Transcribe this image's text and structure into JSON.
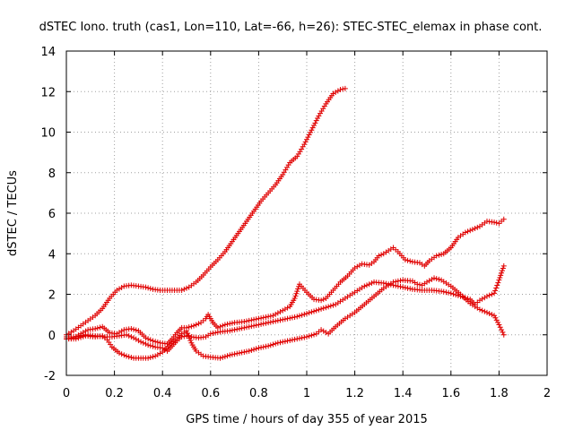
{
  "chart_data": {
    "type": "scatter",
    "title": "dSTEC Iono. truth (cas1, Lon=110, Lat=-66, h=26): STEC-STEC_elemax in phase cont.",
    "xlabel": "GPS time / hours of day 355 of year 2015",
    "ylabel": "dSTEC  / TECUs",
    "xlim": [
      0,
      2
    ],
    "ylim": [
      -2,
      14
    ],
    "xticks": [
      "0",
      "0.2",
      "0.4",
      "0.6",
      "0.8",
      "1",
      "1.2",
      "1.4",
      "1.6",
      "1.8",
      "2"
    ],
    "yticks": [
      "-2",
      "0",
      "2",
      "4",
      "6",
      "8",
      "10",
      "12",
      "14"
    ],
    "grid": true,
    "marker": "plus",
    "color": "#e00000",
    "series": [
      {
        "points": [
          [
            0.0,
            0.0
          ],
          [
            0.03,
            0.2
          ],
          [
            0.06,
            0.45
          ],
          [
            0.09,
            0.7
          ],
          [
            0.12,
            0.95
          ],
          [
            0.15,
            1.3
          ],
          [
            0.18,
            1.8
          ],
          [
            0.21,
            2.2
          ],
          [
            0.24,
            2.4
          ],
          [
            0.27,
            2.45
          ],
          [
            0.3,
            2.4
          ],
          [
            0.33,
            2.35
          ],
          [
            0.36,
            2.25
          ],
          [
            0.39,
            2.2
          ],
          [
            0.42,
            2.2
          ],
          [
            0.45,
            2.2
          ],
          [
            0.48,
            2.2
          ],
          [
            0.51,
            2.35
          ],
          [
            0.54,
            2.6
          ],
          [
            0.57,
            2.95
          ],
          [
            0.6,
            3.35
          ],
          [
            0.63,
            3.7
          ],
          [
            0.66,
            4.1
          ],
          [
            0.69,
            4.6
          ],
          [
            0.72,
            5.1
          ],
          [
            0.75,
            5.6
          ],
          [
            0.78,
            6.1
          ],
          [
            0.81,
            6.6
          ],
          [
            0.84,
            7.0
          ],
          [
            0.87,
            7.4
          ],
          [
            0.9,
            7.9
          ],
          [
            0.93,
            8.5
          ],
          [
            0.96,
            8.8
          ],
          [
            0.99,
            9.4
          ],
          [
            1.02,
            10.1
          ],
          [
            1.05,
            10.8
          ],
          [
            1.08,
            11.4
          ],
          [
            1.11,
            11.9
          ],
          [
            1.14,
            12.1
          ],
          [
            1.16,
            12.15
          ]
        ]
      },
      {
        "points": [
          [
            0.0,
            -0.2
          ],
          [
            0.04,
            -0.2
          ],
          [
            0.08,
            -0.05
          ],
          [
            0.12,
            -0.1
          ],
          [
            0.15,
            -0.05
          ],
          [
            0.17,
            -0.25
          ],
          [
            0.19,
            -0.6
          ],
          [
            0.22,
            -0.9
          ],
          [
            0.25,
            -1.05
          ],
          [
            0.28,
            -1.15
          ],
          [
            0.31,
            -1.15
          ],
          [
            0.34,
            -1.15
          ],
          [
            0.37,
            -1.05
          ],
          [
            0.4,
            -0.85
          ],
          [
            0.43,
            -0.5
          ],
          [
            0.46,
            -0.2
          ],
          [
            0.48,
            0.05
          ],
          [
            0.5,
            0.2
          ],
          [
            0.52,
            -0.4
          ],
          [
            0.54,
            -0.8
          ],
          [
            0.57,
            -1.05
          ],
          [
            0.6,
            -1.1
          ],
          [
            0.64,
            -1.15
          ],
          [
            0.68,
            -1.0
          ],
          [
            0.72,
            -0.9
          ],
          [
            0.76,
            -0.8
          ],
          [
            0.8,
            -0.65
          ],
          [
            0.84,
            -0.55
          ],
          [
            0.88,
            -0.4
          ],
          [
            0.92,
            -0.3
          ],
          [
            0.96,
            -0.2
          ],
          [
            1.0,
            -0.1
          ],
          [
            1.04,
            0.05
          ],
          [
            1.06,
            0.25
          ],
          [
            1.09,
            0.05
          ],
          [
            1.12,
            0.4
          ],
          [
            1.16,
            0.8
          ],
          [
            1.2,
            1.1
          ],
          [
            1.24,
            1.5
          ],
          [
            1.28,
            1.9
          ],
          [
            1.32,
            2.3
          ],
          [
            1.36,
            2.6
          ],
          [
            1.4,
            2.7
          ],
          [
            1.44,
            2.65
          ],
          [
            1.46,
            2.5
          ],
          [
            1.48,
            2.45
          ],
          [
            1.5,
            2.6
          ],
          [
            1.53,
            2.8
          ],
          [
            1.56,
            2.7
          ],
          [
            1.6,
            2.4
          ],
          [
            1.64,
            2.0
          ],
          [
            1.68,
            1.55
          ],
          [
            1.72,
            1.25
          ],
          [
            1.75,
            1.1
          ],
          [
            1.78,
            0.95
          ],
          [
            1.8,
            0.5
          ],
          [
            1.82,
            0.0
          ]
        ]
      },
      {
        "points": [
          [
            0.0,
            -0.2
          ],
          [
            0.03,
            -0.15
          ],
          [
            0.06,
            0.05
          ],
          [
            0.09,
            0.25
          ],
          [
            0.12,
            0.3
          ],
          [
            0.15,
            0.4
          ],
          [
            0.18,
            0.1
          ],
          [
            0.21,
            0.05
          ],
          [
            0.24,
            0.25
          ],
          [
            0.27,
            0.3
          ],
          [
            0.3,
            0.2
          ],
          [
            0.33,
            -0.15
          ],
          [
            0.36,
            -0.3
          ],
          [
            0.39,
            -0.4
          ],
          [
            0.42,
            -0.45
          ],
          [
            0.44,
            -0.2
          ],
          [
            0.46,
            0.1
          ],
          [
            0.48,
            0.35
          ],
          [
            0.5,
            0.35
          ],
          [
            0.53,
            0.45
          ],
          [
            0.56,
            0.6
          ],
          [
            0.58,
            0.8
          ],
          [
            0.59,
            1.0
          ],
          [
            0.61,
            0.6
          ],
          [
            0.63,
            0.35
          ],
          [
            0.66,
            0.5
          ],
          [
            0.7,
            0.6
          ],
          [
            0.74,
            0.65
          ],
          [
            0.78,
            0.75
          ],
          [
            0.82,
            0.85
          ],
          [
            0.86,
            0.95
          ],
          [
            0.9,
            1.2
          ],
          [
            0.93,
            1.4
          ],
          [
            0.95,
            1.8
          ],
          [
            0.97,
            2.5
          ],
          [
            1.0,
            2.1
          ],
          [
            1.03,
            1.75
          ],
          [
            1.06,
            1.7
          ],
          [
            1.08,
            1.8
          ],
          [
            1.11,
            2.2
          ],
          [
            1.14,
            2.6
          ],
          [
            1.17,
            2.9
          ],
          [
            1.2,
            3.3
          ],
          [
            1.23,
            3.5
          ],
          [
            1.26,
            3.45
          ],
          [
            1.28,
            3.6
          ],
          [
            1.3,
            3.9
          ],
          [
            1.32,
            4.0
          ],
          [
            1.34,
            4.15
          ],
          [
            1.36,
            4.3
          ],
          [
            1.38,
            4.1
          ],
          [
            1.41,
            3.7
          ],
          [
            1.44,
            3.6
          ],
          [
            1.47,
            3.55
          ],
          [
            1.49,
            3.4
          ],
          [
            1.51,
            3.65
          ],
          [
            1.54,
            3.9
          ],
          [
            1.57,
            4.0
          ],
          [
            1.6,
            4.3
          ],
          [
            1.63,
            4.8
          ],
          [
            1.66,
            5.05
          ],
          [
            1.69,
            5.2
          ],
          [
            1.72,
            5.35
          ],
          [
            1.75,
            5.6
          ],
          [
            1.78,
            5.55
          ],
          [
            1.8,
            5.5
          ],
          [
            1.82,
            5.7
          ]
        ]
      },
      {
        "points": [
          [
            0.0,
            -0.1
          ],
          [
            0.04,
            -0.1
          ],
          [
            0.08,
            0.0
          ],
          [
            0.12,
            -0.05
          ],
          [
            0.16,
            -0.1
          ],
          [
            0.19,
            -0.1
          ],
          [
            0.22,
            -0.05
          ],
          [
            0.25,
            0.0
          ],
          [
            0.28,
            -0.15
          ],
          [
            0.31,
            -0.35
          ],
          [
            0.34,
            -0.5
          ],
          [
            0.37,
            -0.6
          ],
          [
            0.4,
            -0.65
          ],
          [
            0.42,
            -0.8
          ],
          [
            0.44,
            -0.55
          ],
          [
            0.46,
            -0.3
          ],
          [
            0.48,
            -0.1
          ],
          [
            0.5,
            -0.05
          ],
          [
            0.52,
            -0.1
          ],
          [
            0.55,
            -0.15
          ],
          [
            0.58,
            -0.1
          ],
          [
            0.6,
            0.05
          ],
          [
            0.64,
            0.15
          ],
          [
            0.68,
            0.2
          ],
          [
            0.72,
            0.3
          ],
          [
            0.76,
            0.4
          ],
          [
            0.8,
            0.5
          ],
          [
            0.84,
            0.6
          ],
          [
            0.88,
            0.7
          ],
          [
            0.92,
            0.8
          ],
          [
            0.96,
            0.9
          ],
          [
            1.0,
            1.05
          ],
          [
            1.04,
            1.2
          ],
          [
            1.08,
            1.35
          ],
          [
            1.12,
            1.5
          ],
          [
            1.16,
            1.8
          ],
          [
            1.2,
            2.1
          ],
          [
            1.24,
            2.4
          ],
          [
            1.28,
            2.6
          ],
          [
            1.32,
            2.55
          ],
          [
            1.36,
            2.45
          ],
          [
            1.4,
            2.35
          ],
          [
            1.44,
            2.25
          ],
          [
            1.48,
            2.2
          ],
          [
            1.52,
            2.2
          ],
          [
            1.56,
            2.15
          ],
          [
            1.6,
            2.05
          ],
          [
            1.64,
            1.9
          ],
          [
            1.68,
            1.75
          ],
          [
            1.7,
            1.5
          ],
          [
            1.72,
            1.7
          ],
          [
            1.75,
            1.9
          ],
          [
            1.78,
            2.05
          ],
          [
            1.8,
            2.7
          ],
          [
            1.82,
            3.4
          ]
        ]
      }
    ]
  }
}
